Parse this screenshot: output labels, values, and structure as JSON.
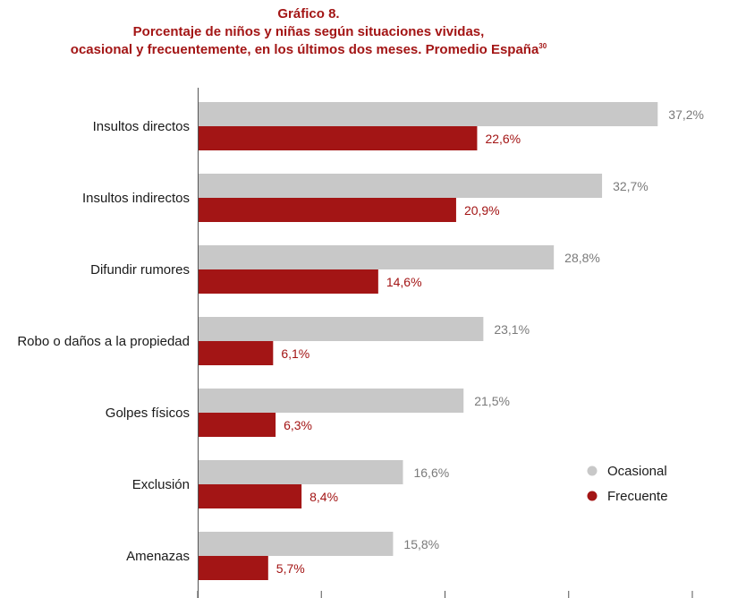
{
  "title": {
    "line1": "Gráfico 8.",
    "line2": "Porcentaje de niños y niñas según situaciones vividas,",
    "line3": "ocasional y frecuentemente, en los últimos dos meses. Promedio España",
    "footnote": "30"
  },
  "chart_data": {
    "type": "bar",
    "orientation": "horizontal",
    "categories": [
      "Insultos directos",
      "Insultos indirectos",
      "Difundir rumores",
      "Robo o daños a la propiedad",
      "Golpes físicos",
      "Exclusión",
      "Amenazas"
    ],
    "series": [
      {
        "name": "Ocasional",
        "values": [
          37.2,
          32.7,
          28.8,
          23.1,
          21.5,
          16.6,
          15.8
        ],
        "labels": [
          "37,2%",
          "32,7%",
          "28,8%",
          "23,1%",
          "21,5%",
          "16,6%",
          "15,8%"
        ],
        "color": "#c8c8c8"
      },
      {
        "name": "Frecuente",
        "values": [
          22.6,
          20.9,
          14.6,
          6.1,
          6.3,
          8.4,
          5.7
        ],
        "labels": [
          "22,6%",
          "20,9%",
          "14,6%",
          "6,1%",
          "6,3%",
          "8,4%",
          "5,7%"
        ],
        "color": "#a31515"
      }
    ],
    "xlim": [
      0,
      40
    ],
    "legend_position": "bottom-right",
    "grid": false
  }
}
